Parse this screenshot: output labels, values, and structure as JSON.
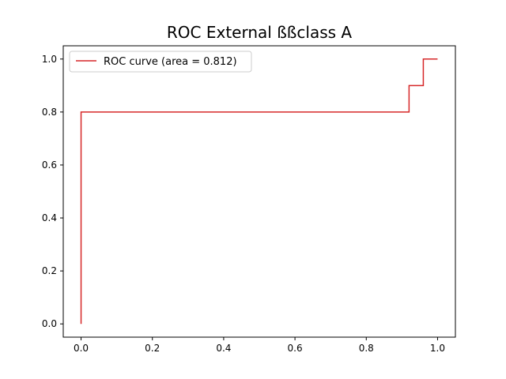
{
  "chart_data": {
    "type": "line",
    "title": "ROC External ßßclass A",
    "xlabel": "",
    "ylabel": "",
    "xlim": [
      -0.05,
      1.05
    ],
    "ylim": [
      -0.05,
      1.05
    ],
    "x_ticks": [
      0.0,
      0.2,
      0.4,
      0.6,
      0.8,
      1.0
    ],
    "x_tick_labels": [
      "0.0",
      "0.2",
      "0.4",
      "0.6",
      "0.8",
      "1.0"
    ],
    "y_ticks": [
      0.0,
      0.2,
      0.4,
      0.6,
      0.8,
      1.0
    ],
    "y_tick_labels": [
      "0.0",
      "0.2",
      "0.4",
      "0.6",
      "0.8",
      "1.0"
    ],
    "grid": false,
    "legend_position": "upper-left",
    "series": [
      {
        "name": "ROC curve (area = 0.812)",
        "color": "#d62728",
        "x": [
          0.0,
          0.0,
          0.92,
          0.92,
          0.96,
          0.96,
          1.0
        ],
        "y": [
          0.0,
          0.8,
          0.8,
          0.9,
          0.9,
          1.0,
          1.0
        ]
      }
    ]
  }
}
